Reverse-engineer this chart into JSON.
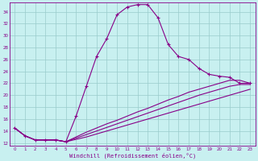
{
  "xlabel": "Windchill (Refroidissement éolien,°C)",
  "bg_color": "#c8f0f0",
  "line_color": "#880088",
  "grid_color": "#99cccc",
  "xlim": [
    -0.5,
    23.5
  ],
  "ylim": [
    11.5,
    35.5
  ],
  "yticks": [
    12,
    14,
    16,
    18,
    20,
    22,
    24,
    26,
    28,
    30,
    32,
    34
  ],
  "xticks": [
    0,
    1,
    2,
    3,
    4,
    5,
    6,
    7,
    8,
    9,
    10,
    11,
    12,
    13,
    14,
    15,
    16,
    17,
    18,
    19,
    20,
    21,
    22,
    23
  ],
  "curve1_x": [
    0,
    1,
    2,
    3,
    4,
    5,
    6,
    7,
    8,
    9,
    10,
    11,
    12,
    13,
    14,
    15,
    16,
    17,
    18,
    19,
    20,
    21,
    22,
    23
  ],
  "curve1_y": [
    14.5,
    13.2,
    12.5,
    12.5,
    12.5,
    12.2,
    16.5,
    21.5,
    26.5,
    29.5,
    33.5,
    34.8,
    35.2,
    35.2,
    33.0,
    28.5,
    26.5,
    26.0,
    24.5,
    23.5,
    23.2,
    23.0,
    22.0,
    22.0
  ],
  "curve2_x": [
    0,
    1,
    2,
    3,
    4,
    5,
    6,
    7,
    8,
    9,
    10,
    11,
    12,
    13,
    14,
    15,
    16,
    17,
    18,
    19,
    20,
    21,
    22,
    23
  ],
  "curve2_y": [
    14.5,
    13.2,
    12.5,
    12.5,
    12.5,
    12.2,
    13.0,
    13.8,
    14.5,
    15.2,
    15.8,
    16.5,
    17.2,
    17.8,
    18.5,
    19.2,
    19.8,
    20.5,
    21.0,
    21.5,
    22.0,
    22.5,
    22.5,
    22.0
  ],
  "curve3_x": [
    0,
    1,
    2,
    3,
    4,
    5,
    6,
    7,
    8,
    9,
    10,
    11,
    12,
    13,
    14,
    15,
    16,
    17,
    18,
    19,
    20,
    21,
    22,
    23
  ],
  "curve3_y": [
    14.5,
    13.2,
    12.5,
    12.5,
    12.5,
    12.2,
    12.8,
    13.4,
    14.0,
    14.6,
    15.2,
    15.8,
    16.4,
    17.0,
    17.6,
    18.2,
    18.8,
    19.4,
    20.0,
    20.5,
    21.0,
    21.5,
    21.8,
    21.8
  ],
  "curve4_x": [
    0,
    1,
    2,
    3,
    4,
    5,
    6,
    7,
    8,
    9,
    10,
    11,
    12,
    13,
    14,
    15,
    16,
    17,
    18,
    19,
    20,
    21,
    22,
    23
  ],
  "curve4_y": [
    14.5,
    13.2,
    12.5,
    12.5,
    12.5,
    12.2,
    12.6,
    13.0,
    13.5,
    14.0,
    14.5,
    15.0,
    15.5,
    16.0,
    16.5,
    17.0,
    17.5,
    18.0,
    18.5,
    19.0,
    19.5,
    20.0,
    20.5,
    21.0
  ]
}
